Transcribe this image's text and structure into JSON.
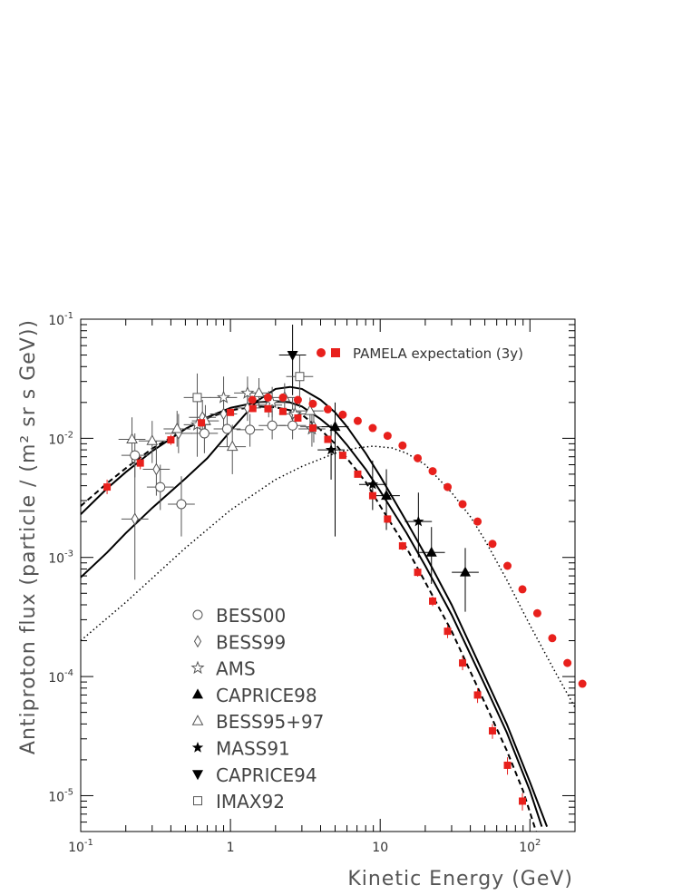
{
  "chart_data": {
    "type": "scatter",
    "xlabel": "Kinetic Energy (GeV)",
    "ylabel": "Antiproton flux (particle / (m² sr s GeV))",
    "x_scale": "log",
    "y_scale": "log",
    "xlim": [
      0.1,
      200
    ],
    "ylim": [
      5e-06,
      0.1
    ],
    "x_ticks": [
      {
        "value": 0.1,
        "base": "10",
        "exp": "-1"
      },
      {
        "value": 1,
        "base": "1",
        "exp": ""
      },
      {
        "value": 10,
        "base": "10",
        "exp": ""
      },
      {
        "value": 100,
        "base": "10",
        "exp": "2"
      }
    ],
    "y_ticks": [
      {
        "value": 1e-05,
        "base": "10",
        "exp": "-5"
      },
      {
        "value": 0.0001,
        "base": "10",
        "exp": "-4"
      },
      {
        "value": 0.001,
        "base": "10",
        "exp": "-3"
      },
      {
        "value": 0.01,
        "base": "10",
        "exp": "-2"
      },
      {
        "value": 0.1,
        "base": "10",
        "exp": "-1"
      }
    ],
    "legend_position": "bottom-left",
    "pamela_label": "PAMELA expectation (3y)",
    "series": [
      {
        "name": "BESS00",
        "marker": "circle-open",
        "color": "#555555",
        "points": [
          [
            0.23,
            0.0072,
            0.0047,
            0.011
          ],
          [
            0.34,
            0.0039,
            0.0025,
            0.006
          ],
          [
            0.47,
            0.0028,
            0.0015,
            0.0048
          ],
          [
            0.67,
            0.011,
            0.0075,
            0.016
          ],
          [
            0.95,
            0.012,
            0.0085,
            0.017
          ],
          [
            1.35,
            0.0118,
            0.0085,
            0.016
          ],
          [
            1.9,
            0.0128,
            0.0098,
            0.017
          ],
          [
            2.6,
            0.0128,
            0.0098,
            0.017
          ]
        ]
      },
      {
        "name": "BESS99",
        "marker": "diamond-open",
        "color": "#555555",
        "points": [
          [
            0.23,
            0.0021,
            0.00065,
            0.0065
          ],
          [
            0.32,
            0.0055,
            0.0033,
            0.0095
          ],
          [
            0.45,
            0.011,
            0.0075,
            0.016
          ],
          [
            0.65,
            0.015,
            0.011,
            0.021
          ],
          [
            0.9,
            0.016,
            0.012,
            0.022
          ],
          [
            1.3,
            0.018,
            0.014,
            0.024
          ],
          [
            1.8,
            0.019,
            0.015,
            0.025
          ],
          [
            2.6,
            0.016,
            0.012,
            0.022
          ],
          [
            3.6,
            0.0125,
            0.0092,
            0.017
          ]
        ]
      },
      {
        "name": "AMS",
        "marker": "star-open",
        "color": "#555555",
        "points": [
          [
            0.6,
            0.013,
            0.007,
            0.022
          ],
          [
            0.9,
            0.022,
            0.014,
            0.033
          ],
          [
            1.3,
            0.024,
            0.017,
            0.033
          ],
          [
            1.9,
            0.02,
            0.015,
            0.027
          ],
          [
            2.7,
            0.016,
            0.012,
            0.022
          ],
          [
            3.5,
            0.012,
            0.0085,
            0.017
          ]
        ]
      },
      {
        "name": "CAPRICE98",
        "marker": "triangle-filled",
        "color": "#000000",
        "points": [
          [
            5.0,
            0.0125,
            0.0015,
            0.02
          ],
          [
            11.0,
            0.0033,
            0.0017,
            0.0055
          ],
          [
            22.0,
            0.0011,
            0.0006,
            0.0018
          ],
          [
            37.0,
            0.00075,
            0.00035,
            0.0012
          ]
        ]
      },
      {
        "name": "BESS95+97",
        "marker": "triangle-open",
        "color": "#555555",
        "points": [
          [
            0.22,
            0.0098,
            0.006,
            0.015
          ],
          [
            0.3,
            0.0095,
            0.0062,
            0.014
          ],
          [
            0.44,
            0.012,
            0.0085,
            0.017
          ],
          [
            0.68,
            0.014,
            0.01,
            0.019
          ],
          [
            1.03,
            0.0085,
            0.005,
            0.013
          ],
          [
            1.55,
            0.024,
            0.018,
            0.032
          ],
          [
            2.3,
            0.022,
            0.017,
            0.029
          ],
          [
            3.4,
            0.017,
            0.013,
            0.022
          ]
        ]
      },
      {
        "name": "MASS91",
        "marker": "star-filled",
        "color": "#000000",
        "points": [
          [
            4.7,
            0.008,
            0.0045,
            0.013
          ],
          [
            8.9,
            0.0041,
            0.0025,
            0.0065
          ],
          [
            18.0,
            0.002,
            0.001,
            0.0035
          ]
        ]
      },
      {
        "name": "CAPRICE94",
        "marker": "triangle-down-filled",
        "color": "#000000",
        "points": [
          [
            2.6,
            0.05,
            0.023,
            0.09
          ]
        ]
      },
      {
        "name": "IMAX92",
        "marker": "square-open",
        "color": "#555555",
        "points": [
          [
            0.6,
            0.022,
            0.011,
            0.035
          ],
          [
            2.9,
            0.033,
            0.018,
            0.05
          ]
        ]
      },
      {
        "name": "",
        "marker": "circle-filled",
        "color": "#e8201c",
        "points": [
          [
            1.4,
            0.021
          ],
          [
            1.78,
            0.022
          ],
          [
            2.24,
            0.022
          ],
          [
            2.82,
            0.021
          ],
          [
            3.55,
            0.0195
          ],
          [
            4.47,
            0.0175
          ],
          [
            5.62,
            0.0158
          ],
          [
            7.08,
            0.014
          ],
          [
            8.91,
            0.0122
          ],
          [
            11.2,
            0.0105
          ],
          [
            14.1,
            0.0087
          ],
          [
            17.8,
            0.0068
          ],
          [
            22.4,
            0.0053
          ],
          [
            28.2,
            0.0039
          ],
          [
            35.5,
            0.0028
          ],
          [
            44.7,
            0.002
          ],
          [
            56.2,
            0.0013
          ],
          [
            70.8,
            0.00085
          ],
          [
            89.1,
            0.00054
          ],
          [
            112,
            0.00034
          ],
          [
            141,
            0.00021
          ],
          [
            178,
            0.00013
          ],
          [
            224,
            8.7e-05
          ]
        ]
      },
      {
        "name": "",
        "marker": "square-filled",
        "color": "#e8201c",
        "points": [
          [
            0.15,
            0.0039,
            0.0034,
            0.0045
          ],
          [
            0.25,
            0.0062,
            0.0055,
            0.007
          ],
          [
            0.4,
            0.0097,
            0.0088,
            0.0107
          ],
          [
            0.64,
            0.0135,
            0.0125,
            0.0146
          ],
          [
            1.0,
            0.0165,
            0.0155,
            0.0176
          ],
          [
            1.41,
            0.0178,
            0.017,
            0.0188
          ],
          [
            1.78,
            0.0177,
            0.0169,
            0.0186
          ],
          [
            2.24,
            0.0168,
            0.0161,
            0.0176
          ],
          [
            2.82,
            0.0148,
            0.0142,
            0.0155
          ],
          [
            3.55,
            0.0122,
            0.0116,
            0.0128
          ],
          [
            4.47,
            0.0098,
            0.0093,
            0.0103
          ],
          [
            5.62,
            0.0072,
            0.0068,
            0.0076
          ],
          [
            7.08,
            0.005,
            0.0047,
            0.0053
          ],
          [
            8.91,
            0.0033,
            0.0031,
            0.0035
          ],
          [
            11.2,
            0.0021,
            0.00195,
            0.00225
          ],
          [
            14.1,
            0.00125,
            0.00115,
            0.00135
          ],
          [
            17.8,
            0.00075,
            0.00069,
            0.00081
          ],
          [
            22.4,
            0.00043,
            0.00039,
            0.00047
          ],
          [
            28.2,
            0.00024,
            0.00021,
            0.00027
          ],
          [
            35.5,
            0.00013,
            0.000113,
            0.000147
          ],
          [
            44.7,
            7e-05,
            6e-05,
            8e-05
          ],
          [
            56.2,
            3.5e-05,
            3e-05,
            4e-05
          ],
          [
            70.8,
            1.8e-05,
            1.5e-05,
            2.1e-05
          ],
          [
            89.1,
            9e-06,
            7.5e-06,
            1.05e-05
          ]
        ]
      }
    ],
    "curves": [
      {
        "style": "solid",
        "width": 2,
        "color": "#000000",
        "points": [
          [
            0.1,
            0.0023
          ],
          [
            0.15,
            0.0038
          ],
          [
            0.2,
            0.0052
          ],
          [
            0.3,
            0.0078
          ],
          [
            0.5,
            0.012
          ],
          [
            0.7,
            0.015
          ],
          [
            1.0,
            0.018
          ],
          [
            1.5,
            0.02
          ],
          [
            2.0,
            0.0205
          ],
          [
            2.5,
            0.02
          ],
          [
            3.0,
            0.0185
          ],
          [
            4.0,
            0.0145
          ],
          [
            5.0,
            0.0115
          ],
          [
            6.0,
            0.0088
          ],
          [
            8.0,
            0.0055
          ],
          [
            10.0,
            0.0036
          ],
          [
            15.0,
            0.0016
          ],
          [
            20.0,
            0.00085
          ],
          [
            30.0,
            0.00033
          ],
          [
            50.0,
            8.5e-05
          ],
          [
            70.0,
            3.4e-05
          ],
          [
            100,
            1.1e-05
          ],
          [
            120,
            5.5e-06
          ]
        ]
      },
      {
        "style": "solid",
        "width": 2,
        "color": "#000000",
        "points": [
          [
            0.1,
            0.00068
          ],
          [
            0.15,
            0.0011
          ],
          [
            0.2,
            0.0016
          ],
          [
            0.3,
            0.0026
          ],
          [
            0.5,
            0.0046
          ],
          [
            0.7,
            0.0068
          ],
          [
            1.0,
            0.0115
          ],
          [
            1.5,
            0.0205
          ],
          [
            2.0,
            0.026
          ],
          [
            2.5,
            0.027
          ],
          [
            3.0,
            0.026
          ],
          [
            4.0,
            0.021
          ],
          [
            5.0,
            0.0165
          ],
          [
            6.0,
            0.0125
          ],
          [
            8.0,
            0.0075
          ],
          [
            10.0,
            0.0048
          ],
          [
            15.0,
            0.002
          ],
          [
            20.0,
            0.00105
          ],
          [
            30.0,
            0.0004
          ],
          [
            50.0,
            0.0001
          ],
          [
            70.0,
            4e-05
          ],
          [
            100,
            1.3e-05
          ],
          [
            130,
            5.5e-06
          ]
        ]
      },
      {
        "style": "dashed",
        "width": 2,
        "color": "#000000",
        "points": [
          [
            0.1,
            0.0027
          ],
          [
            0.15,
            0.0042
          ],
          [
            0.2,
            0.0056
          ],
          [
            0.3,
            0.0082
          ],
          [
            0.5,
            0.012
          ],
          [
            0.7,
            0.0148
          ],
          [
            1.0,
            0.0172
          ],
          [
            1.5,
            0.0185
          ],
          [
            2.0,
            0.0182
          ],
          [
            2.5,
            0.0172
          ],
          [
            3.0,
            0.0158
          ],
          [
            4.0,
            0.0118
          ],
          [
            5.0,
            0.009
          ],
          [
            6.0,
            0.0068
          ],
          [
            8.0,
            0.0043
          ],
          [
            10.0,
            0.0027
          ],
          [
            15.0,
            0.0012
          ],
          [
            20.0,
            0.00062
          ],
          [
            30.0,
            0.00024
          ],
          [
            50.0,
            6e-05
          ],
          [
            70.0,
            2.4e-05
          ],
          [
            90.0,
            1.1e-05
          ],
          [
            110,
            5e-06
          ]
        ]
      },
      {
        "style": "dotted",
        "width": 1.5,
        "color": "#000000",
        "points": [
          [
            0.1,
            0.0002
          ],
          [
            0.2,
            0.00042
          ],
          [
            0.5,
            0.0012
          ],
          [
            1.0,
            0.0025
          ],
          [
            2.0,
            0.0045
          ],
          [
            3.0,
            0.0058
          ],
          [
            5.0,
            0.0075
          ],
          [
            7.0,
            0.0083
          ],
          [
            9.0,
            0.0086
          ],
          [
            12.0,
            0.0083
          ],
          [
            15.0,
            0.0075
          ],
          [
            20.0,
            0.006
          ],
          [
            30.0,
            0.0035
          ],
          [
            40.0,
            0.0022
          ],
          [
            50.0,
            0.0014
          ],
          [
            70.0,
            0.00065
          ],
          [
            100,
            0.00027
          ],
          [
            150,
            0.000105
          ],
          [
            200,
            5.5e-05
          ]
        ]
      }
    ]
  }
}
